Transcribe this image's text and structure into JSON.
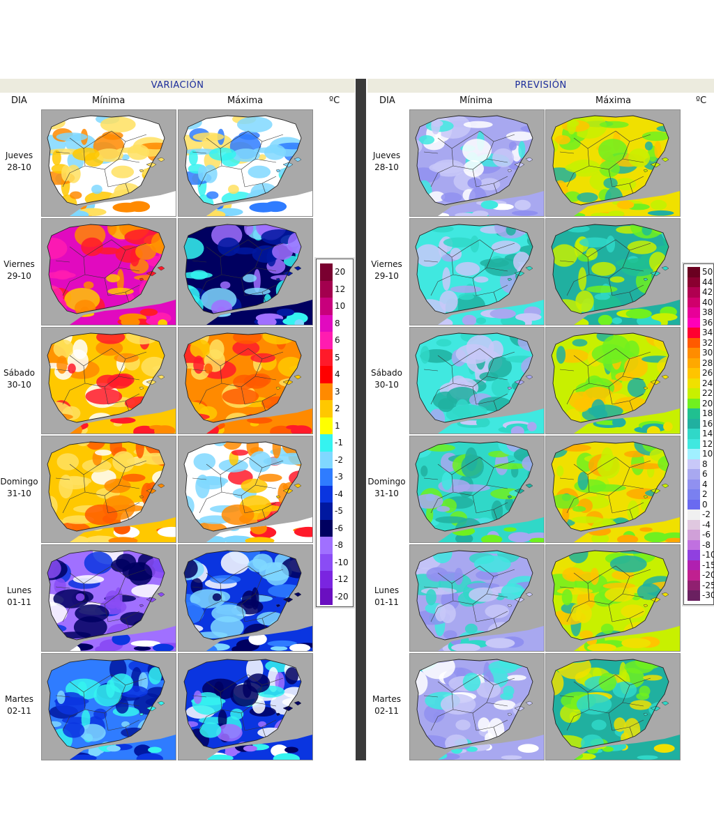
{
  "left": {
    "title": "VARIACIÓN",
    "col_dia": "DIA",
    "col_min": "Mínima",
    "col_max": "Máxima",
    "unit": "ºC",
    "legend": {
      "labels": [
        "20",
        "12",
        "10",
        "8",
        "6",
        "5",
        "4",
        "3",
        "2",
        "1",
        "-1",
        "-2",
        "-3",
        "-4",
        "-5",
        "-6",
        "-8",
        "-10",
        "-12",
        "-20"
      ],
      "colors": [
        "#7a0030",
        "#a3004e",
        "#c8007c",
        "#e10abf",
        "#ff1cb0",
        "#ff1a2a",
        "#ff0000",
        "#ff8a00",
        "#ffc800",
        "#ffff00",
        "#35f3f0",
        "#80d8ff",
        "#2f7cff",
        "#0a35e0",
        "#0018a0",
        "#000060",
        "#a070ff",
        "#8a4cf5",
        "#7a25e0",
        "#6a0fc0"
      ]
    }
  },
  "right": {
    "title": "PREVISIÓN",
    "col_dia": "DIA",
    "col_min": "Mínima",
    "col_max": "Máxima",
    "unit": "ºC",
    "legend": {
      "labels": [
        "50",
        "44",
        "42",
        "40",
        "38",
        "36",
        "34",
        "32",
        "30",
        "28",
        "26",
        "24",
        "22",
        "20",
        "18",
        "16",
        "14",
        "12",
        "10",
        "8",
        "6",
        "4",
        "2",
        "0",
        "-2",
        "-4",
        "-6",
        "-8",
        "-10",
        "-15",
        "-20",
        "-25",
        "-30"
      ],
      "colors": [
        "#6a0020",
        "#8a0030",
        "#b00050",
        "#d0006c",
        "#e80098",
        "#ff00b8",
        "#ff0030",
        "#ff5a00",
        "#ff8c00",
        "#ffa800",
        "#ffc400",
        "#f0e000",
        "#c8f000",
        "#70f020",
        "#20c090",
        "#20b0a0",
        "#30d8c8",
        "#40e8e0",
        "#a0f0ff",
        "#c8c8f8",
        "#a8a8f0",
        "#9090f0",
        "#7a80f0",
        "#6a6af0",
        "#f0f0f0",
        "#e0c8e0",
        "#d0a0d8",
        "#c070e0",
        "#9040e0",
        "#b020b0",
        "#c02090",
        "#902070",
        "#6a2060"
      ]
    }
  },
  "days": [
    {
      "name": "Jueves",
      "date": "28-10"
    },
    {
      "name": "Viernes",
      "date": "29-10"
    },
    {
      "name": "Sábado",
      "date": "30-10"
    },
    {
      "name": "Domingo",
      "date": "31-10"
    },
    {
      "name": "Lunes",
      "date": "01-11"
    },
    {
      "name": "Martes",
      "date": "02-11"
    }
  ],
  "maps": {
    "var_min": [
      {
        "palette": [
          "#ffffff",
          "#ffe060",
          "#ffc800",
          "#80d8ff",
          "#ff8a00"
        ]
      },
      {
        "palette": [
          "#e10abf",
          "#ff1a2a",
          "#ff8a00",
          "#ffc800",
          "#ff1cb0"
        ]
      },
      {
        "palette": [
          "#ffc800",
          "#ffe060",
          "#ff8a00",
          "#ffffff",
          "#ff1a2a"
        ]
      },
      {
        "palette": [
          "#ffc800",
          "#ff8a00",
          "#ffe060",
          "#ff5a00",
          "#ffffff"
        ]
      },
      {
        "palette": [
          "#a070ff",
          "#8a4cf5",
          "#0a35e0",
          "#000060",
          "#ffffff"
        ]
      },
      {
        "palette": [
          "#2f7cff",
          "#35f3f0",
          "#0a35e0",
          "#0018a0",
          "#80d8ff"
        ]
      }
    ],
    "var_max": [
      {
        "palette": [
          "#ffffff",
          "#80d8ff",
          "#35f3f0",
          "#ffe060",
          "#2f7cff"
        ]
      },
      {
        "palette": [
          "#000060",
          "#0018a0",
          "#a070ff",
          "#80d8ff",
          "#35f3f0"
        ]
      },
      {
        "palette": [
          "#ff8a00",
          "#ffc800",
          "#ff1a2a",
          "#ffe060",
          "#ff5a00"
        ]
      },
      {
        "palette": [
          "#ffffff",
          "#ffc800",
          "#80d8ff",
          "#ff8a00",
          "#ff1a2a"
        ]
      },
      {
        "palette": [
          "#0a35e0",
          "#000060",
          "#ffffff",
          "#80d8ff",
          "#2f7cff"
        ]
      },
      {
        "palette": [
          "#0a35e0",
          "#000060",
          "#35f3f0",
          "#ffffff",
          "#a070ff"
        ]
      }
    ],
    "prev_min": [
      {
        "palette": [
          "#a8a8f0",
          "#c8c8f8",
          "#40e8e0",
          "#9090f0",
          "#ffffff"
        ]
      },
      {
        "palette": [
          "#40e8e0",
          "#30d8c8",
          "#a8a8f0",
          "#c8c8f8",
          "#20b0a0"
        ]
      },
      {
        "palette": [
          "#40e8e0",
          "#a8a8f0",
          "#30d8c8",
          "#c8c8f8",
          "#20b0a0"
        ]
      },
      {
        "palette": [
          "#30d8c8",
          "#20b0a0",
          "#40e8e0",
          "#70f020",
          "#a8a8f0"
        ]
      },
      {
        "palette": [
          "#a8a8f0",
          "#c8c8f8",
          "#40e8e0",
          "#30d8c8",
          "#9090f0"
        ]
      },
      {
        "palette": [
          "#a8a8f0",
          "#c8c8f8",
          "#9090f0",
          "#40e8e0",
          "#ffffff"
        ]
      }
    ],
    "prev_max": [
      {
        "palette": [
          "#f0e000",
          "#c8f000",
          "#ffc400",
          "#20b0a0",
          "#70f020"
        ]
      },
      {
        "palette": [
          "#20b0a0",
          "#30d8c8",
          "#70f020",
          "#c8f000",
          "#20c090"
        ]
      },
      {
        "palette": [
          "#c8f000",
          "#f0e000",
          "#20b0a0",
          "#70f020",
          "#ffc400"
        ]
      },
      {
        "palette": [
          "#f0e000",
          "#c8f000",
          "#20b0a0",
          "#ffa800",
          "#70f020"
        ]
      },
      {
        "palette": [
          "#c8f000",
          "#f0e000",
          "#20b0a0",
          "#70f020",
          "#ffc400"
        ]
      },
      {
        "palette": [
          "#20b0a0",
          "#30d8c8",
          "#c8f000",
          "#70f020",
          "#f0e000"
        ]
      }
    ]
  }
}
